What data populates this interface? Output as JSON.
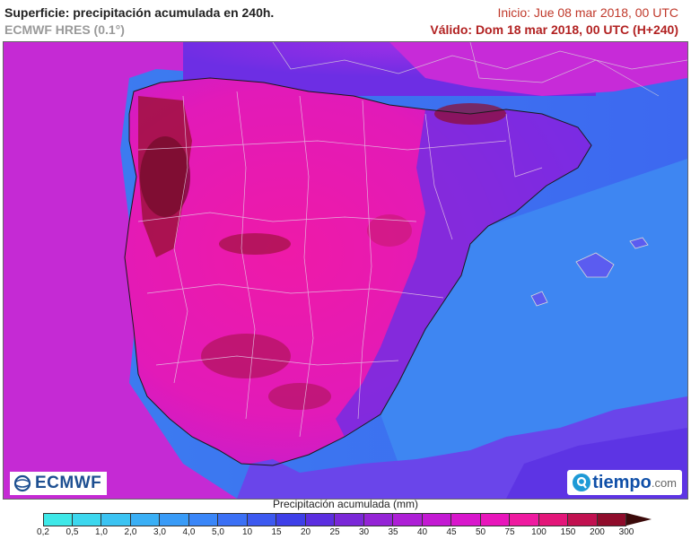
{
  "header": {
    "title": "Superficie: precipitación acumulada en 240h.",
    "model": "ECMWF HRES (0.1°)",
    "init": "Inicio: Jue 08 mar 2018, 00 UTC",
    "valid": "Válido: Dom 18 mar 2018, 00 UTC (H+240)"
  },
  "logos": {
    "left": "ECMWF",
    "right": "tiempo",
    "right_suffix": ".com"
  },
  "legend": {
    "title": "Precipitación acumulada (mm)",
    "ticks": [
      "0,2",
      "0,5",
      "1,0",
      "2,0",
      "3,0",
      "4,0",
      "5,0",
      "10",
      "15",
      "20",
      "25",
      "30",
      "35",
      "40",
      "45",
      "50",
      "75",
      "100",
      "150",
      "200",
      "300"
    ],
    "colors": [
      "#3ee8e8",
      "#3cd7ee",
      "#3bc3f2",
      "#3aaff5",
      "#399bf7",
      "#3a86f8",
      "#3b70f5",
      "#3c59f0",
      "#3e3fe8",
      "#5b2ee0",
      "#7a28d8",
      "#9424d6",
      "#ad1fd6",
      "#c31ad3",
      "#d817cc",
      "#e816bb",
      "#ee1aa0",
      "#e31679",
      "#c11150",
      "#8f0c2b"
    ],
    "overflow_color": "#3b0a0a"
  },
  "map": {
    "ocean_color": "#3a7af2",
    "land_color": "#e61ea0"
  }
}
